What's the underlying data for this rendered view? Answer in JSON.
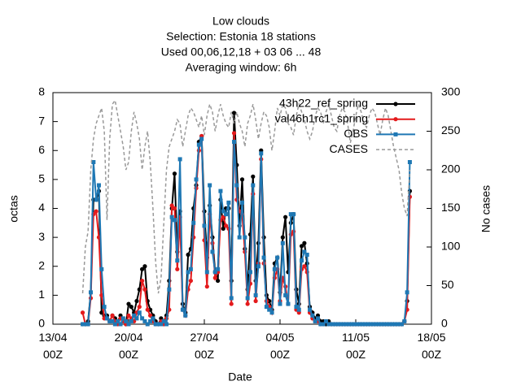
{
  "chart_data": {
    "type": "line",
    "title": "Low clouds",
    "subtitle": [
      "Selection: Estonia      18 stations",
      "Used  00,06,12,18  + 03 06 ... 48",
      "Averaging window:  6h"
    ],
    "xlabel": "Date",
    "ylabel": "octas",
    "y2label": "No cases",
    "x": [
      "15/04 18Z",
      "16/04 00Z",
      "16/04 06Z",
      "16/04 12Z",
      "16/04 18Z",
      "17/04 00Z",
      "17/04 06Z",
      "17/04 12Z",
      "17/04 18Z",
      "18/04 00Z",
      "18/04 06Z",
      "18/04 12Z",
      "18/04 18Z",
      "19/04 00Z",
      "19/04 06Z",
      "19/04 12Z",
      "19/04 18Z",
      "20/04 00Z",
      "20/04 06Z",
      "20/04 12Z",
      "20/04 18Z",
      "21/04 00Z",
      "21/04 06Z",
      "21/04 12Z",
      "21/04 18Z",
      "22/04 00Z",
      "22/04 06Z",
      "22/04 12Z",
      "22/04 18Z",
      "23/04 00Z",
      "23/04 06Z",
      "23/04 12Z",
      "23/04 18Z",
      "24/04 00Z",
      "24/04 06Z",
      "24/04 12Z",
      "24/04 18Z",
      "25/04 00Z",
      "25/04 06Z",
      "25/04 12Z",
      "25/04 18Z",
      "26/04 00Z",
      "26/04 06Z",
      "26/04 12Z",
      "26/04 18Z",
      "27/04 00Z",
      "27/04 06Z",
      "27/04 12Z",
      "27/04 18Z",
      "28/04 00Z",
      "28/04 06Z",
      "28/04 12Z",
      "28/04 18Z",
      "29/04 00Z",
      "29/04 06Z",
      "29/04 12Z",
      "29/04 18Z",
      "30/04 00Z",
      "30/04 06Z",
      "30/04 12Z",
      "30/04 18Z",
      "01/05 00Z",
      "01/05 06Z",
      "01/05 12Z",
      "01/05 18Z",
      "02/05 00Z",
      "02/05 06Z",
      "02/05 12Z",
      "02/05 18Z",
      "03/05 00Z",
      "03/05 06Z",
      "03/05 12Z",
      "03/05 18Z",
      "04/05 00Z",
      "04/05 06Z",
      "04/05 12Z",
      "04/05 18Z",
      "05/05 00Z",
      "05/05 06Z",
      "05/05 12Z",
      "05/05 18Z",
      "06/05 00Z",
      "06/05 06Z",
      "06/05 12Z",
      "06/05 18Z",
      "07/05 00Z",
      "07/05 06Z",
      "07/05 12Z",
      "07/05 18Z",
      "08/05 00Z",
      "08/05 06Z",
      "08/05 12Z",
      "08/05 18Z",
      "09/05 00Z",
      "09/05 06Z",
      "09/05 12Z",
      "09/05 18Z",
      "10/05 00Z",
      "10/05 06Z",
      "10/05 12Z",
      "10/05 18Z",
      "11/05 00Z",
      "11/05 06Z",
      "11/05 12Z",
      "11/05 18Z",
      "12/05 00Z",
      "12/05 06Z",
      "12/05 12Z",
      "12/05 18Z",
      "13/05 00Z",
      "13/05 06Z",
      "13/05 12Z",
      "13/05 18Z",
      "14/05 00Z",
      "14/05 06Z",
      "14/05 12Z",
      "14/05 18Z",
      "15/05 00Z",
      "15/05 06Z",
      "15/05 12Z",
      "15/05 18Z",
      "16/05 00Z"
    ],
    "series": [
      {
        "name": "43h22_ref_spring",
        "color": "#000000",
        "marker": "circle",
        "values": [
          0.0,
          0.0,
          0.1,
          1.1,
          4.3,
          4.3,
          4.6,
          0.4,
          0.3,
          0.3,
          0.1,
          0.3,
          0.2,
          0.1,
          0.3,
          0.1,
          0.0,
          0.7,
          0.6,
          0.4,
          0.8,
          1.2,
          1.9,
          2.0,
          0.8,
          0.5,
          0.3,
          0.1,
          0.0,
          0.2,
          0.1,
          0.3,
          1.5,
          4.0,
          5.2,
          2.5,
          3.9,
          0.7,
          0.4,
          2.4,
          2.6,
          4.0,
          4.8,
          6.3,
          6.5,
          3.9,
          2.3,
          4.1,
          3.0,
          1.8,
          1.5,
          4.3,
          3.3,
          4.0,
          4.0,
          1.5,
          7.3,
          5.5,
          3.4,
          5.0,
          2.6,
          1.2,
          3.1,
          5.1,
          1.5,
          2.8,
          6.0,
          3.0,
          1.0,
          0.8,
          0.5,
          2.1,
          2.3,
          1.1,
          3.0,
          3.7,
          1.8,
          3.5,
          3.8,
          1.2,
          0.7,
          2.7,
          2.8,
          2.1,
          0.6,
          0.4,
          0.2,
          0.3,
          0.1,
          0.1,
          0.0,
          0.1,
          0.0,
          0,
          0,
          0,
          0,
          0,
          0,
          0,
          0,
          0,
          0,
          0,
          0,
          0,
          0,
          0,
          0,
          0,
          0,
          0,
          0,
          0,
          0,
          0,
          0,
          0,
          0,
          0.1,
          0.8,
          4.6
        ]
      },
      {
        "name": "val46h1rc1_spring",
        "color": "#e41a1c",
        "marker": "circle",
        "values": [
          0.4,
          0.0,
          0.0,
          0.9,
          3.8,
          3.9,
          3.0,
          1.0,
          0.2,
          0.2,
          0.1,
          0.3,
          0.1,
          0.0,
          0.2,
          0.1,
          0.0,
          0.3,
          0.2,
          0.1,
          0.4,
          0.6,
          1.5,
          1.2,
          0.5,
          0.3,
          0.1,
          0.0,
          0.0,
          0.1,
          0.0,
          0.2,
          0.5,
          4.1,
          4.0,
          1.9,
          3.7,
          0.5,
          0.3,
          1.2,
          1.5,
          3.0,
          4.7,
          6.0,
          6.5,
          2.9,
          1.3,
          3.8,
          2.8,
          1.6,
          1.8,
          3.6,
          3.7,
          3.4,
          3.3,
          0.7,
          6.6,
          4.3,
          3.9,
          3.8,
          2.5,
          0.7,
          1.4,
          4.5,
          0.8,
          2.1,
          5.7,
          2.1,
          0.8,
          0.6,
          0.4,
          1.6,
          1.9,
          0.8,
          1.6,
          1.3,
          0.7,
          3.1,
          3.2,
          0.5,
          0.4,
          1.9,
          2.0,
          1.8,
          0.4,
          0.2,
          0.1,
          0.1,
          0.0,
          0.0,
          0.1,
          0.0,
          0.0,
          0,
          0,
          0,
          0,
          0,
          0,
          0,
          0,
          0,
          0,
          0,
          0,
          0,
          0,
          0,
          0,
          0,
          0,
          0,
          0,
          0,
          0,
          0,
          0,
          0,
          0,
          0.1,
          0.5,
          4.4
        ]
      },
      {
        "name": "OBS",
        "color": "#1f78b4",
        "marker": "square",
        "values": [
          0.0,
          0.0,
          0.0,
          1.1,
          5.6,
          4.3,
          4.8,
          1.9,
          0.6,
          0.2,
          0.1,
          0.1,
          0.0,
          0.1,
          0.0,
          0.2,
          0.1,
          0.0,
          0.1,
          0.3,
          0.2,
          0.4,
          0.2,
          0.1,
          0.0,
          0.1,
          0.2,
          0.0,
          0.0,
          0.0,
          0.1,
          0.0,
          1.2,
          3.7,
          3.6,
          2.2,
          5.7,
          0.5,
          0.3,
          1.8,
          1.9,
          3.5,
          5.0,
          6.2,
          6.4,
          3.4,
          1.8,
          4.8,
          2.5,
          1.8,
          1.9,
          4.6,
          3.9,
          3.8,
          4.2,
          0.9,
          6.3,
          4.8,
          3.0,
          4.2,
          3.0,
          0.9,
          1.8,
          4.8,
          1.0,
          2.0,
          5.9,
          2.3,
          0.6,
          0.5,
          0.4,
          1.9,
          2.3,
          0.7,
          2.8,
          1.0,
          0.7,
          3.8,
          3.8,
          0.6,
          0.5,
          2.2,
          2.5,
          2.4,
          0.5,
          0.3,
          0.1,
          0.2,
          0.0,
          0.0,
          0.1,
          0.0,
          0.0,
          0,
          0,
          0,
          0,
          0,
          0,
          0,
          0,
          0,
          0,
          0,
          0,
          0,
          0,
          0,
          0,
          0,
          0,
          0,
          0,
          0,
          0,
          0,
          0,
          0,
          0,
          0.1,
          1.1,
          5.6
        ]
      },
      {
        "name": "CASES",
        "color": "#999999",
        "dashed": true,
        "axis": "y2",
        "values": [
          40,
          100,
          120,
          200,
          240,
          260,
          270,
          280,
          250,
          135,
          240,
          285,
          290,
          270,
          250,
          230,
          200,
          210,
          250,
          275,
          260,
          240,
          200,
          230,
          250,
          210,
          150,
          80,
          40,
          60,
          130,
          200,
          230,
          240,
          250,
          265,
          260,
          230,
          250,
          270,
          280,
          275,
          265,
          255,
          270,
          245,
          270,
          285,
          275,
          250,
          270,
          285,
          270,
          260,
          255,
          275,
          260,
          275,
          260,
          250,
          230,
          260,
          270,
          285,
          265,
          240,
          260,
          275,
          270,
          255,
          225,
          250,
          280,
          270,
          285,
          280,
          260,
          255,
          245,
          270,
          285,
          275,
          265,
          250,
          240,
          250,
          270,
          280,
          275,
          260,
          275,
          285,
          270,
          255,
          250,
          270,
          280,
          275,
          260,
          235,
          250,
          270,
          285,
          275,
          260,
          255,
          270,
          280,
          275,
          260,
          245,
          265,
          280,
          270,
          250,
          230,
          215,
          200,
          170,
          150,
          140,
          200
        ]
      }
    ],
    "xlim": [
      "13/04 00Z",
      "18/05 00Z"
    ],
    "xticks": [
      "13/04 00Z",
      "20/04 00Z",
      "27/04 00Z",
      "04/05 00Z",
      "11/05 00Z",
      "18/05 00Z"
    ],
    "ylim": [
      0,
      8
    ],
    "yticks": [
      0,
      1,
      2,
      3,
      4,
      5,
      6,
      7,
      8
    ],
    "y2lim": [
      0,
      300
    ],
    "y2ticks": [
      0,
      50,
      100,
      150,
      200,
      250,
      300
    ],
    "legend": "upper right",
    "grid": false
  }
}
